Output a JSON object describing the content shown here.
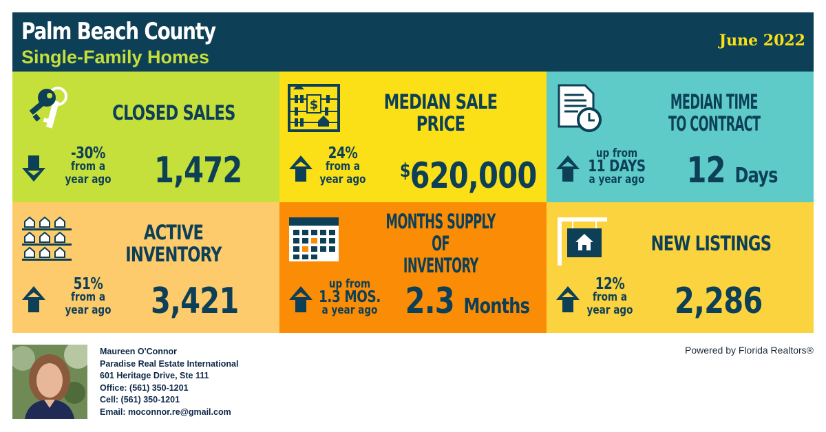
{
  "header": {
    "title": "Palm Beach County",
    "subtitle": "Single-Family Homes",
    "date": "June 2022"
  },
  "tiles": {
    "closed_sales": {
      "label": "CLOSED SALES",
      "change_line1": "-30%",
      "change_line2": "from a",
      "change_line3": "year ago",
      "direction": "down",
      "value": "1,472",
      "icon": "keys-icon"
    },
    "median_sale_price": {
      "label": "MEDIAN SALE PRICE",
      "change_line1": "24%",
      "change_line2": "from a",
      "change_line3": "year ago",
      "direction": "up",
      "currency": "$",
      "value": "620,000",
      "icon": "abacus-icon"
    },
    "median_time": {
      "label_line1": "MEDIAN TIME",
      "label_line2": "TO CONTRACT",
      "change_line1": "up from",
      "change_line2": "11 DAYS",
      "change_line3": "a year ago",
      "direction": "up",
      "value": "12",
      "unit": "Days",
      "icon": "document-clock-icon"
    },
    "active_inventory": {
      "label": "ACTIVE INVENTORY",
      "change_line1": "51%",
      "change_line2": "from a",
      "change_line3": "year ago",
      "direction": "up",
      "value": "3,421",
      "icon": "houses-rows-icon"
    },
    "months_supply": {
      "label_line1": "MONTHS SUPPLY OF",
      "label_line2": "INVENTORY",
      "change_line1": "up from",
      "change_line2": "1.3 MOS.",
      "change_line3": "a year ago",
      "direction": "up",
      "value": "2.3",
      "unit": "Months",
      "icon": "calendar-icon"
    },
    "new_listings": {
      "label": "NEW LISTINGS",
      "change_line1": "12%",
      "change_line2": "from a",
      "change_line3": "year ago",
      "direction": "up",
      "value": "2,286",
      "icon": "house-sign-icon"
    }
  },
  "agent": {
    "name": "Maureen O'Connor",
    "company": "Paradise Real Estate International",
    "address": "601 Heritage Drive, Ste 111",
    "office": "Office: (561) 350-1201",
    "cell": "Cell: (561) 350-1201",
    "email": "Email: moconnor.re@gmail.com"
  },
  "powered_by": "Powered by Florida Realtors®",
  "colors": {
    "navy": "#0d3f57",
    "lime": "#c5df3b",
    "yellow": "#fbe018",
    "teal": "#5ecbc9",
    "peach": "#fdcb6b",
    "orange": "#fb8c06",
    "gold": "#fbd33f"
  }
}
